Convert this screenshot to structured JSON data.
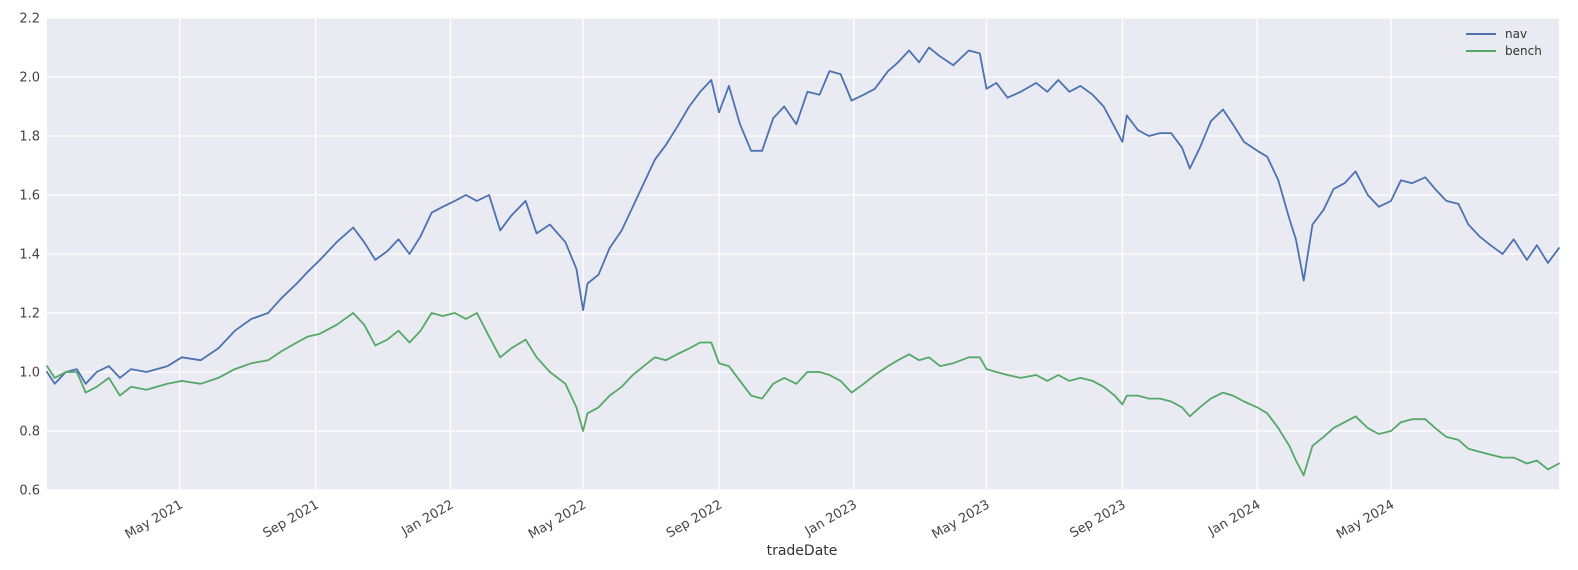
{
  "chart_data": {
    "type": "line",
    "title": "",
    "xlabel": "tradeDate",
    "ylabel": "",
    "x_range": [
      "2021-01-01",
      "2024-09-30"
    ],
    "ylim": [
      0.6,
      2.2
    ],
    "yticks": [
      "0.6",
      "0.8",
      "1.0",
      "1.2",
      "1.4",
      "1.6",
      "1.8",
      "2.0",
      "2.2"
    ],
    "xticks": [
      {
        "date": "2021-05-01",
        "label": "May 2021"
      },
      {
        "date": "2021-09-01",
        "label": "Sep 2021"
      },
      {
        "date": "2022-01-01",
        "label": "Jan 2022"
      },
      {
        "date": "2022-05-01",
        "label": "May 2022"
      },
      {
        "date": "2022-09-01",
        "label": "Sep 2022"
      },
      {
        "date": "2023-01-01",
        "label": "Jan 2023"
      },
      {
        "date": "2023-05-01",
        "label": "May 2023"
      },
      {
        "date": "2023-09-01",
        "label": "Sep 2023"
      },
      {
        "date": "2024-01-01",
        "label": "Jan 2024"
      },
      {
        "date": "2024-05-01",
        "label": "May 2024"
      }
    ],
    "grid": true,
    "legend_position": "top-right",
    "series": [
      {
        "name": "nav",
        "color": "#4c72b0",
        "points": [
          [
            "2021-01-01",
            1.0
          ],
          [
            "2021-01-08",
            0.96
          ],
          [
            "2021-01-18",
            1.0
          ],
          [
            "2021-01-28",
            1.01
          ],
          [
            "2021-02-05",
            0.96
          ],
          [
            "2021-02-15",
            1.0
          ],
          [
            "2021-02-26",
            1.02
          ],
          [
            "2021-03-08",
            0.98
          ],
          [
            "2021-03-18",
            1.01
          ],
          [
            "2021-04-01",
            1.0
          ],
          [
            "2021-04-20",
            1.02
          ],
          [
            "2021-05-03",
            1.05
          ],
          [
            "2021-05-20",
            1.04
          ],
          [
            "2021-06-05",
            1.08
          ],
          [
            "2021-06-20",
            1.14
          ],
          [
            "2021-07-05",
            1.18
          ],
          [
            "2021-07-20",
            1.2
          ],
          [
            "2021-08-01",
            1.25
          ],
          [
            "2021-08-15",
            1.3
          ],
          [
            "2021-08-25",
            1.34
          ],
          [
            "2021-09-05",
            1.38
          ],
          [
            "2021-09-20",
            1.44
          ],
          [
            "2021-10-05",
            1.49
          ],
          [
            "2021-10-15",
            1.44
          ],
          [
            "2021-10-25",
            1.38
          ],
          [
            "2021-11-05",
            1.41
          ],
          [
            "2021-11-15",
            1.45
          ],
          [
            "2021-11-25",
            1.4
          ],
          [
            "2021-12-05",
            1.46
          ],
          [
            "2021-12-15",
            1.54
          ],
          [
            "2021-12-25",
            1.56
          ],
          [
            "2022-01-05",
            1.58
          ],
          [
            "2022-01-15",
            1.6
          ],
          [
            "2022-01-25",
            1.58
          ],
          [
            "2022-02-05",
            1.6
          ],
          [
            "2022-02-15",
            1.48
          ],
          [
            "2022-02-25",
            1.53
          ],
          [
            "2022-03-10",
            1.58
          ],
          [
            "2022-03-20",
            1.47
          ],
          [
            "2022-04-01",
            1.5
          ],
          [
            "2022-04-15",
            1.44
          ],
          [
            "2022-04-25",
            1.35
          ],
          [
            "2022-05-01",
            1.21
          ],
          [
            "2022-05-05",
            1.3
          ],
          [
            "2022-05-15",
            1.33
          ],
          [
            "2022-05-25",
            1.42
          ],
          [
            "2022-06-05",
            1.48
          ],
          [
            "2022-06-15",
            1.56
          ],
          [
            "2022-06-25",
            1.64
          ],
          [
            "2022-07-05",
            1.72
          ],
          [
            "2022-07-15",
            1.77
          ],
          [
            "2022-07-25",
            1.83
          ],
          [
            "2022-08-05",
            1.9
          ],
          [
            "2022-08-15",
            1.95
          ],
          [
            "2022-08-25",
            1.99
          ],
          [
            "2022-09-01",
            1.88
          ],
          [
            "2022-09-10",
            1.97
          ],
          [
            "2022-09-20",
            1.84
          ],
          [
            "2022-09-30",
            1.75
          ],
          [
            "2022-10-10",
            1.75
          ],
          [
            "2022-10-20",
            1.86
          ],
          [
            "2022-10-30",
            1.9
          ],
          [
            "2022-11-10",
            1.84
          ],
          [
            "2022-11-20",
            1.95
          ],
          [
            "2022-12-01",
            1.94
          ],
          [
            "2022-12-10",
            2.02
          ],
          [
            "2022-12-20",
            2.01
          ],
          [
            "2022-12-30",
            1.92
          ],
          [
            "2023-01-10",
            1.94
          ],
          [
            "2023-01-20",
            1.96
          ],
          [
            "2023-02-01",
            2.02
          ],
          [
            "2023-02-10",
            2.05
          ],
          [
            "2023-02-20",
            2.09
          ],
          [
            "2023-03-01",
            2.05
          ],
          [
            "2023-03-10",
            2.1
          ],
          [
            "2023-03-20",
            2.07
          ],
          [
            "2023-04-01",
            2.04
          ],
          [
            "2023-04-15",
            2.09
          ],
          [
            "2023-04-25",
            2.08
          ],
          [
            "2023-05-01",
            1.96
          ],
          [
            "2023-05-10",
            1.98
          ],
          [
            "2023-05-20",
            1.93
          ],
          [
            "2023-06-01",
            1.95
          ],
          [
            "2023-06-15",
            1.98
          ],
          [
            "2023-06-25",
            1.95
          ],
          [
            "2023-07-05",
            1.99
          ],
          [
            "2023-07-15",
            1.95
          ],
          [
            "2023-07-25",
            1.97
          ],
          [
            "2023-08-05",
            1.94
          ],
          [
            "2023-08-15",
            1.9
          ],
          [
            "2023-08-25",
            1.83
          ],
          [
            "2023-09-01",
            1.78
          ],
          [
            "2023-09-05",
            1.87
          ],
          [
            "2023-09-15",
            1.82
          ],
          [
            "2023-09-25",
            1.8
          ],
          [
            "2023-10-05",
            1.81
          ],
          [
            "2023-10-15",
            1.81
          ],
          [
            "2023-10-25",
            1.76
          ],
          [
            "2023-11-01",
            1.69
          ],
          [
            "2023-11-10",
            1.76
          ],
          [
            "2023-11-20",
            1.85
          ],
          [
            "2023-12-01",
            1.89
          ],
          [
            "2023-12-10",
            1.84
          ],
          [
            "2023-12-20",
            1.78
          ],
          [
            "2024-01-01",
            1.75
          ],
          [
            "2024-01-10",
            1.73
          ],
          [
            "2024-01-20",
            1.65
          ],
          [
            "2024-01-30",
            1.52
          ],
          [
            "2024-02-05",
            1.45
          ],
          [
            "2024-02-12",
            1.31
          ],
          [
            "2024-02-20",
            1.5
          ],
          [
            "2024-03-01",
            1.55
          ],
          [
            "2024-03-10",
            1.62
          ],
          [
            "2024-03-20",
            1.64
          ],
          [
            "2024-03-30",
            1.68
          ],
          [
            "2024-04-10",
            1.6
          ],
          [
            "2024-04-20",
            1.56
          ],
          [
            "2024-05-01",
            1.58
          ],
          [
            "2024-05-10",
            1.65
          ],
          [
            "2024-05-20",
            1.64
          ],
          [
            "2024-06-01",
            1.66
          ],
          [
            "2024-06-10",
            1.62
          ],
          [
            "2024-06-20",
            1.58
          ],
          [
            "2024-07-01",
            1.57
          ],
          [
            "2024-07-10",
            1.5
          ],
          [
            "2024-07-20",
            1.46
          ],
          [
            "2024-07-30",
            1.43
          ],
          [
            "2024-08-10",
            1.4
          ],
          [
            "2024-08-20",
            1.45
          ],
          [
            "2024-09-01",
            1.38
          ],
          [
            "2024-09-10",
            1.43
          ],
          [
            "2024-09-20",
            1.37
          ],
          [
            "2024-09-30",
            1.42
          ]
        ]
      },
      {
        "name": "bench",
        "color": "#55a868",
        "points": [
          [
            "2021-01-01",
            1.02
          ],
          [
            "2021-01-08",
            0.98
          ],
          [
            "2021-01-18",
            1.0
          ],
          [
            "2021-01-28",
            1.0
          ],
          [
            "2021-02-05",
            0.93
          ],
          [
            "2021-02-15",
            0.95
          ],
          [
            "2021-02-26",
            0.98
          ],
          [
            "2021-03-08",
            0.92
          ],
          [
            "2021-03-18",
            0.95
          ],
          [
            "2021-04-01",
            0.94
          ],
          [
            "2021-04-20",
            0.96
          ],
          [
            "2021-05-03",
            0.97
          ],
          [
            "2021-05-20",
            0.96
          ],
          [
            "2021-06-05",
            0.98
          ],
          [
            "2021-06-20",
            1.01
          ],
          [
            "2021-07-05",
            1.03
          ],
          [
            "2021-07-20",
            1.04
          ],
          [
            "2021-08-01",
            1.07
          ],
          [
            "2021-08-15",
            1.1
          ],
          [
            "2021-08-25",
            1.12
          ],
          [
            "2021-09-05",
            1.13
          ],
          [
            "2021-09-20",
            1.16
          ],
          [
            "2021-10-05",
            1.2
          ],
          [
            "2021-10-15",
            1.16
          ],
          [
            "2021-10-25",
            1.09
          ],
          [
            "2021-11-05",
            1.11
          ],
          [
            "2021-11-15",
            1.14
          ],
          [
            "2021-11-25",
            1.1
          ],
          [
            "2021-12-05",
            1.14
          ],
          [
            "2021-12-15",
            1.2
          ],
          [
            "2021-12-25",
            1.19
          ],
          [
            "2022-01-05",
            1.2
          ],
          [
            "2022-01-15",
            1.18
          ],
          [
            "2022-01-25",
            1.2
          ],
          [
            "2022-02-05",
            1.12
          ],
          [
            "2022-02-15",
            1.05
          ],
          [
            "2022-02-25",
            1.08
          ],
          [
            "2022-03-10",
            1.11
          ],
          [
            "2022-03-20",
            1.05
          ],
          [
            "2022-04-01",
            1.0
          ],
          [
            "2022-04-15",
            0.96
          ],
          [
            "2022-04-25",
            0.88
          ],
          [
            "2022-05-01",
            0.8
          ],
          [
            "2022-05-05",
            0.86
          ],
          [
            "2022-05-15",
            0.88
          ],
          [
            "2022-05-25",
            0.92
          ],
          [
            "2022-06-05",
            0.95
          ],
          [
            "2022-06-15",
            0.99
          ],
          [
            "2022-06-25",
            1.02
          ],
          [
            "2022-07-05",
            1.05
          ],
          [
            "2022-07-15",
            1.04
          ],
          [
            "2022-07-25",
            1.06
          ],
          [
            "2022-08-05",
            1.08
          ],
          [
            "2022-08-15",
            1.1
          ],
          [
            "2022-08-25",
            1.1
          ],
          [
            "2022-09-01",
            1.03
          ],
          [
            "2022-09-10",
            1.02
          ],
          [
            "2022-09-20",
            0.97
          ],
          [
            "2022-09-30",
            0.92
          ],
          [
            "2022-10-10",
            0.91
          ],
          [
            "2022-10-20",
            0.96
          ],
          [
            "2022-10-30",
            0.98
          ],
          [
            "2022-11-10",
            0.96
          ],
          [
            "2022-11-20",
            1.0
          ],
          [
            "2022-12-01",
            1.0
          ],
          [
            "2022-12-10",
            0.99
          ],
          [
            "2022-12-20",
            0.97
          ],
          [
            "2022-12-30",
            0.93
          ],
          [
            "2023-01-10",
            0.96
          ],
          [
            "2023-01-20",
            0.99
          ],
          [
            "2023-02-01",
            1.02
          ],
          [
            "2023-02-10",
            1.04
          ],
          [
            "2023-02-20",
            1.06
          ],
          [
            "2023-03-01",
            1.04
          ],
          [
            "2023-03-10",
            1.05
          ],
          [
            "2023-03-20",
            1.02
          ],
          [
            "2023-04-01",
            1.03
          ],
          [
            "2023-04-15",
            1.05
          ],
          [
            "2023-04-25",
            1.05
          ],
          [
            "2023-05-01",
            1.01
          ],
          [
            "2023-05-10",
            1.0
          ],
          [
            "2023-05-20",
            0.99
          ],
          [
            "2023-06-01",
            0.98
          ],
          [
            "2023-06-15",
            0.99
          ],
          [
            "2023-06-25",
            0.97
          ],
          [
            "2023-07-05",
            0.99
          ],
          [
            "2023-07-15",
            0.97
          ],
          [
            "2023-07-25",
            0.98
          ],
          [
            "2023-08-05",
            0.97
          ],
          [
            "2023-08-15",
            0.95
          ],
          [
            "2023-08-25",
            0.92
          ],
          [
            "2023-09-01",
            0.89
          ],
          [
            "2023-09-05",
            0.92
          ],
          [
            "2023-09-15",
            0.92
          ],
          [
            "2023-09-25",
            0.91
          ],
          [
            "2023-10-05",
            0.91
          ],
          [
            "2023-10-15",
            0.9
          ],
          [
            "2023-10-25",
            0.88
          ],
          [
            "2023-11-01",
            0.85
          ],
          [
            "2023-11-10",
            0.88
          ],
          [
            "2023-11-20",
            0.91
          ],
          [
            "2023-12-01",
            0.93
          ],
          [
            "2023-12-10",
            0.92
          ],
          [
            "2023-12-20",
            0.9
          ],
          [
            "2024-01-01",
            0.88
          ],
          [
            "2024-01-10",
            0.86
          ],
          [
            "2024-01-20",
            0.81
          ],
          [
            "2024-01-30",
            0.75
          ],
          [
            "2024-02-05",
            0.7
          ],
          [
            "2024-02-12",
            0.65
          ],
          [
            "2024-02-20",
            0.75
          ],
          [
            "2024-03-01",
            0.78
          ],
          [
            "2024-03-10",
            0.81
          ],
          [
            "2024-03-20",
            0.83
          ],
          [
            "2024-03-30",
            0.85
          ],
          [
            "2024-04-10",
            0.81
          ],
          [
            "2024-04-20",
            0.79
          ],
          [
            "2024-05-01",
            0.8
          ],
          [
            "2024-05-10",
            0.83
          ],
          [
            "2024-05-20",
            0.84
          ],
          [
            "2024-06-01",
            0.84
          ],
          [
            "2024-06-10",
            0.81
          ],
          [
            "2024-06-20",
            0.78
          ],
          [
            "2024-07-01",
            0.77
          ],
          [
            "2024-07-10",
            0.74
          ],
          [
            "2024-07-20",
            0.73
          ],
          [
            "2024-07-30",
            0.72
          ],
          [
            "2024-08-10",
            0.71
          ],
          [
            "2024-08-20",
            0.71
          ],
          [
            "2024-09-01",
            0.69
          ],
          [
            "2024-09-10",
            0.7
          ],
          [
            "2024-09-20",
            0.67
          ],
          [
            "2024-09-30",
            0.69
          ]
        ]
      }
    ]
  }
}
